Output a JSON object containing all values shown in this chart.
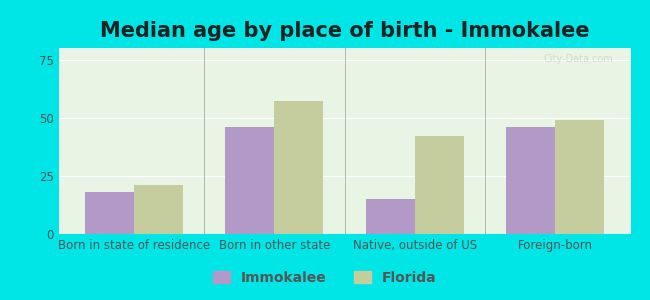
{
  "title": "Median age by place of birth - Immokalee",
  "categories": [
    "Born in state of residence",
    "Born in other state",
    "Native, outside of US",
    "Foreign-born"
  ],
  "immokalee_values": [
    18,
    46,
    15,
    46
  ],
  "florida_values": [
    21,
    57,
    42,
    49
  ],
  "immokalee_color": "#b399c8",
  "florida_color": "#c5cc9e",
  "background_outer": "#00e5e5",
  "background_plot": "#e8f5e4",
  "ylim": [
    0,
    80
  ],
  "yticks": [
    0,
    25,
    50,
    75
  ],
  "bar_width": 0.35,
  "title_fontsize": 15,
  "tick_fontsize": 8.5,
  "legend_fontsize": 10
}
